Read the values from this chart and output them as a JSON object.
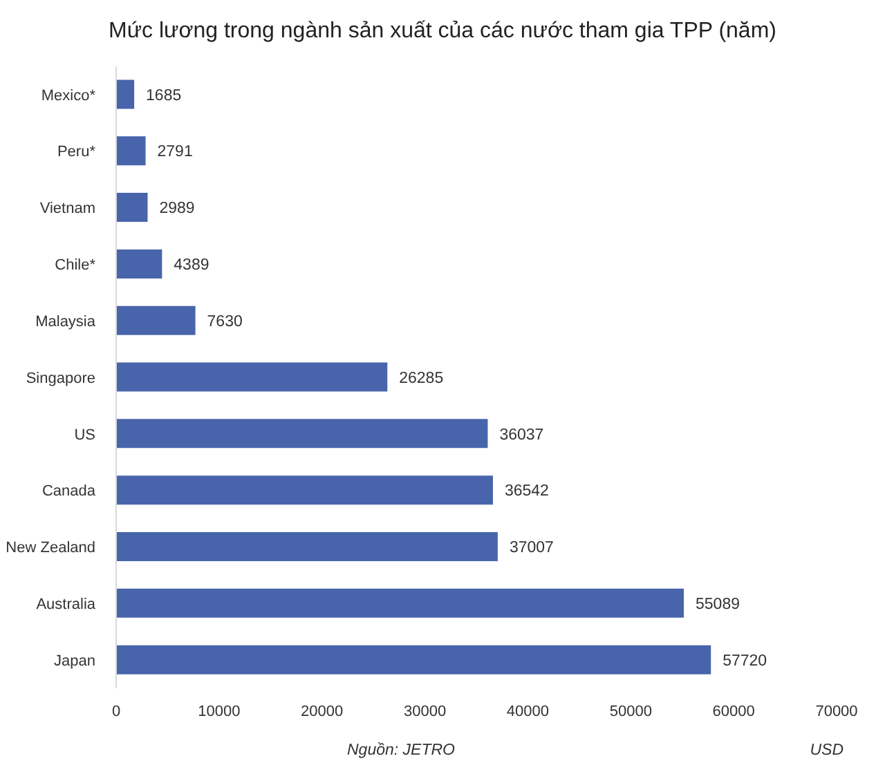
{
  "chart_data": {
    "type": "bar",
    "orientation": "horizontal",
    "title": "Mức lương trong ngành sản xuất của các nước tham gia TPP (năm)",
    "xlabel": "USD",
    "annotations": [
      "Nguồn: JETRO"
    ],
    "categories": [
      "Mexico*",
      "Peru*",
      "Vietnam",
      "Chile*",
      "Malaysia",
      "Singapore",
      "US",
      "Canada",
      "New Zealand",
      "Australia",
      "Japan"
    ],
    "values": [
      1685,
      2791,
      2989,
      4389,
      7630,
      26285,
      36037,
      36542,
      37007,
      55089,
      57720
    ],
    "color": "#4865ac",
    "xlim": [
      0,
      70000
    ],
    "xticks": [
      0,
      10000,
      20000,
      30000,
      40000,
      50000,
      60000,
      70000
    ],
    "data_labels": true
  }
}
